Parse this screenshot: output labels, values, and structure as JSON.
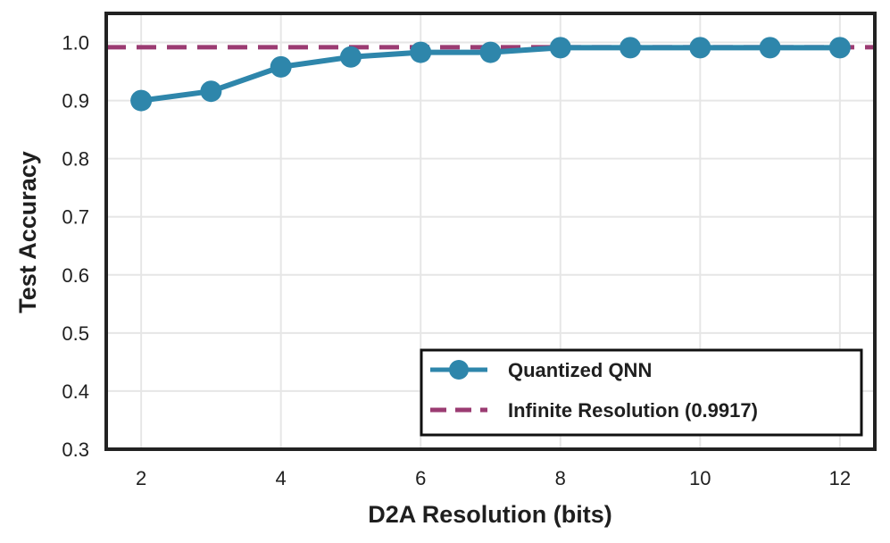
{
  "chart_data": {
    "type": "line",
    "title": "",
    "xlabel": "D2A Resolution (bits)",
    "ylabel": "Test Accuracy",
    "xlim": [
      1.5,
      12.5
    ],
    "ylim": [
      0.3,
      1.05
    ],
    "xticks": [
      2,
      4,
      6,
      8,
      10,
      12
    ],
    "yticks": [
      0.3,
      0.4,
      0.5,
      0.6,
      0.7,
      0.8,
      0.9,
      1.0
    ],
    "xtick_labels": [
      "2",
      "4",
      "6",
      "8",
      "10",
      "12"
    ],
    "ytick_labels": [
      "0.3",
      "0.4",
      "0.5",
      "0.6",
      "0.7",
      "0.8",
      "0.9",
      "1.0"
    ],
    "grid": true,
    "legend_position": "lower-right",
    "series": [
      {
        "name": "Quantized QNN",
        "style": "line-with-markers",
        "color": "#2e86ab",
        "x": [
          2,
          3,
          4,
          5,
          6,
          7,
          8,
          9,
          10,
          11,
          12
        ],
        "y": [
          0.9,
          0.916,
          0.958,
          0.975,
          0.983,
          0.983,
          0.991,
          0.991,
          0.991,
          0.991,
          0.991
        ]
      },
      {
        "name": "Infinite Resolution (0.9917)",
        "style": "dashed-hline",
        "color": "#9b3b72",
        "y": 0.9917
      }
    ]
  }
}
